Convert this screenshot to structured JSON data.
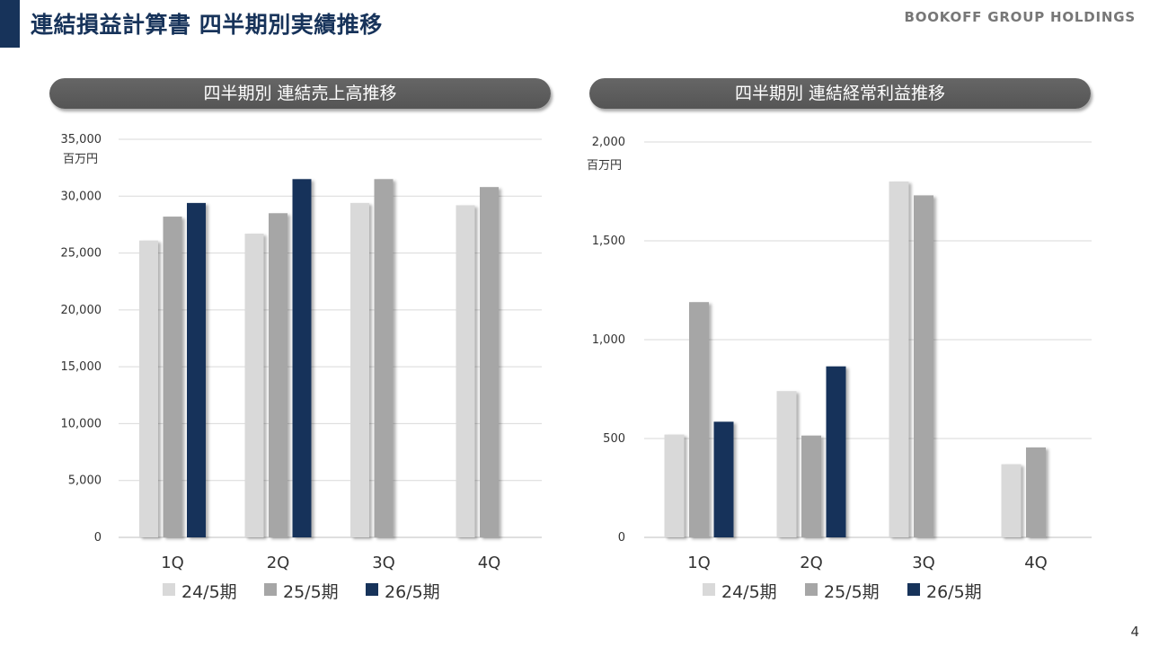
{
  "header": {
    "title": "連結損益計算書 四半期別実績推移",
    "company": "BOOKOFF GROUP HOLDINGS",
    "page_number": "4"
  },
  "colors": {
    "accent": "#17335a",
    "series": [
      "#d9d9d9",
      "#a6a6a6",
      "#17335a"
    ]
  },
  "chart_data": [
    {
      "id": "sales",
      "type": "bar",
      "title": "四半期別 連結売上高推移",
      "unit": "百万円",
      "categories": [
        "1Q",
        "2Q",
        "3Q",
        "4Q"
      ],
      "ylim": [
        0,
        35000
      ],
      "yticks": [
        0,
        5000,
        10000,
        15000,
        20000,
        25000,
        30000,
        35000
      ],
      "ytick_labels": [
        "0",
        "5,000",
        "10,000",
        "15,000",
        "20,000",
        "25,000",
        "30,000",
        "35,000"
      ],
      "grid": true,
      "legend": "bottom",
      "series": [
        {
          "name": "24/5期",
          "values": [
            26100,
            26700,
            29400,
            29200
          ]
        },
        {
          "name": "25/5期",
          "values": [
            28200,
            28500,
            31500,
            30800
          ]
        },
        {
          "name": "26/5期",
          "values": [
            29400,
            31500,
            null,
            null
          ]
        }
      ]
    },
    {
      "id": "ordinary",
      "type": "bar",
      "title": "四半期別 連結経常利益推移",
      "unit": "百万円",
      "categories": [
        "1Q",
        "2Q",
        "3Q",
        "4Q"
      ],
      "ylim": [
        0,
        2000
      ],
      "yticks": [
        0,
        500,
        1000,
        1500,
        2000
      ],
      "ytick_labels": [
        "0",
        "500",
        "1,000",
        "1,500",
        "2,000"
      ],
      "grid": true,
      "legend": "bottom",
      "series": [
        {
          "name": "24/5期",
          "values": [
            520,
            740,
            1800,
            370
          ]
        },
        {
          "name": "25/5期",
          "values": [
            1190,
            515,
            1730,
            455
          ]
        },
        {
          "name": "26/5期",
          "values": [
            585,
            865,
            null,
            null
          ]
        }
      ]
    }
  ]
}
